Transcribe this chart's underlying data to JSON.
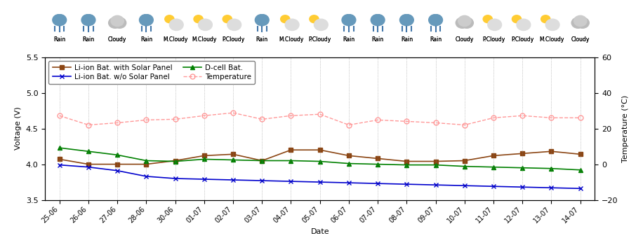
{
  "dates": [
    "25-06",
    "26-06",
    "27-06",
    "28-06",
    "30-06",
    "01-07",
    "02-07",
    "03-07",
    "04-07",
    "05-07",
    "06-07",
    "07-07",
    "08-07",
    "09-07",
    "10-07",
    "11-07",
    "12-07",
    "13-07",
    "14-07"
  ],
  "weather_labels": [
    "Rain",
    "Rain",
    "Cloudy",
    "Rain",
    "M.Cloudy",
    "M.Cloudy",
    "P.Cloudy",
    "Rain",
    "M.Cloudy",
    "P.Cloudy",
    "Rain",
    "Rain",
    "Rain",
    "Rain",
    "Cloudy",
    "P.Cloudy",
    "P.Cloudy",
    "M.Cloudy",
    "Cloudy"
  ],
  "li_ion_solar": [
    4.07,
    4.0,
    4.0,
    4.0,
    4.05,
    4.12,
    4.14,
    4.05,
    4.2,
    4.2,
    4.12,
    4.08,
    4.04,
    4.04,
    4.05,
    4.12,
    4.15,
    4.18,
    4.14
  ],
  "li_ion_no_solar": [
    3.99,
    3.96,
    3.91,
    3.83,
    3.8,
    3.79,
    3.78,
    3.77,
    3.76,
    3.75,
    3.74,
    3.73,
    3.72,
    3.71,
    3.7,
    3.69,
    3.68,
    3.67,
    3.66
  ],
  "d_cell": [
    4.23,
    4.18,
    4.13,
    4.05,
    4.04,
    4.07,
    4.06,
    4.05,
    4.05,
    4.04,
    4.01,
    4.0,
    3.99,
    3.99,
    3.97,
    3.96,
    3.95,
    3.94,
    3.92
  ],
  "temperature_v": [
    4.68,
    4.55,
    4.58,
    4.62,
    4.63,
    4.68,
    4.72,
    4.63,
    4.68,
    4.7,
    4.55,
    4.62,
    4.6,
    4.58,
    4.55,
    4.65,
    4.68,
    4.65,
    4.65
  ],
  "color_li_solar": "#8B4513",
  "color_li_no_solar": "#0000CD",
  "color_d_cell": "#008000",
  "color_temp": "#FF9999",
  "ylim_left": [
    3.5,
    5.5
  ],
  "ylim_right": [
    -20,
    60
  ],
  "ylabel_left": "Voltage (V)",
  "ylabel_right": "Temperature (°C)",
  "xlabel": "Date",
  "legend_li_solar": "Li-ion Bat. with Solar Panel",
  "legend_li_no_solar": "Li-ion Bat. w/o Solar Panel",
  "legend_d_cell": "D-cell Bat.",
  "legend_temp": "Temperature"
}
